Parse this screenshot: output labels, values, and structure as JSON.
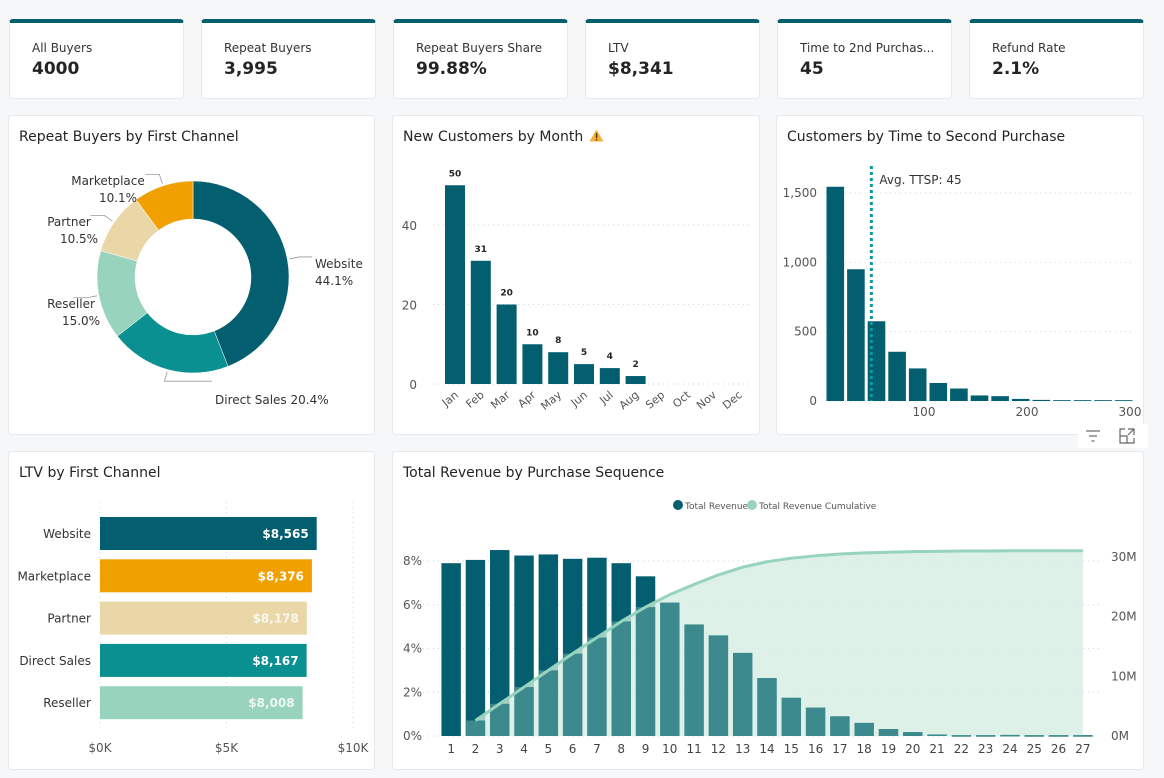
{
  "colors": {
    "primary": "#035e70",
    "teal": "#0a9090",
    "orange": "#f0a000",
    "beige": "#e9d7a8",
    "mint": "#97d3bd",
    "cumulative_fill": "#d3ede3",
    "cumulative_line": "#97d3bd",
    "revenue_overlap": "#3d8a8e",
    "avg_line": "#0a9aa0",
    "warning": "#f5b03b"
  },
  "kpis": [
    {
      "label": "All Buyers",
      "value": "4000"
    },
    {
      "label": "Repeat Buyers",
      "value": "3,995"
    },
    {
      "label": "Repeat Buyers Share",
      "value": "99.88%"
    },
    {
      "label": "LTV",
      "value": "$8,341"
    },
    {
      "label": "Time to 2nd Purchas...",
      "value": "45"
    },
    {
      "label": "Refund Rate",
      "value": "2.1%"
    }
  ],
  "visual_header_icons": [
    "filter-icon",
    "focus-mode-icon"
  ],
  "chart_data": [
    {
      "id": "repeat-buyers-by-channel",
      "type": "pie",
      "donut": true,
      "title": "Repeat Buyers by First Channel",
      "categories": [
        "Website",
        "Direct Sales",
        "Reseller",
        "Partner",
        "Marketplace"
      ],
      "values": [
        44.1,
        20.4,
        15.0,
        10.5,
        10.1
      ],
      "labels": [
        "44.1%",
        "20.4%",
        "15.0%",
        "10.5%",
        "10.1%"
      ],
      "colors": [
        "#035e70",
        "#0a9090",
        "#97d3bd",
        "#e9d7a8",
        "#f0a000"
      ]
    },
    {
      "id": "new-customers-by-month",
      "type": "bar",
      "title": "New Customers by Month",
      "title_icon": "warning-icon",
      "categories": [
        "Jan",
        "Feb",
        "Mar",
        "Apr",
        "May",
        "Jun",
        "Jul",
        "Aug",
        "Sep",
        "Oct",
        "Nov",
        "Dec"
      ],
      "values": [
        50,
        31,
        20,
        10,
        8,
        5,
        4,
        2,
        null,
        null,
        null,
        null
      ],
      "data_labels": [
        "50",
        "31",
        "20",
        "10",
        "8",
        "5",
        "4",
        "2",
        "",
        "",
        "",
        ""
      ],
      "yticks": [
        0,
        20,
        40
      ],
      "ytick_labels": [
        "0",
        "20",
        "40"
      ],
      "ylim": [
        0,
        55
      ],
      "grid": true
    },
    {
      "id": "customers-by-ttsp",
      "type": "bar",
      "title": "Customers by Time to Second Purchase",
      "bin_width": 20,
      "x": [
        10,
        30,
        50,
        70,
        90,
        110,
        130,
        150,
        170,
        190,
        210,
        230,
        250,
        270,
        290
      ],
      "values": [
        1545,
        950,
        575,
        355,
        235,
        130,
        90,
        40,
        35,
        15,
        8,
        6,
        6,
        6,
        6
      ],
      "xlim": [
        0,
        300
      ],
      "xticks": [
        100,
        200,
        300
      ],
      "xtick_labels": [
        "100",
        "200",
        "300"
      ],
      "yticks": [
        0,
        500,
        1000,
        1500
      ],
      "ytick_labels": [
        "0",
        "500",
        "1,000",
        "1,500"
      ],
      "ylim": [
        0,
        1700
      ],
      "reference_line": {
        "x": 45,
        "label": "Avg. TTSP: 45"
      },
      "grid": true
    },
    {
      "id": "ltv-by-channel",
      "type": "bar",
      "orientation": "horizontal",
      "title": "LTV by First Channel",
      "categories": [
        "Website",
        "Marketplace",
        "Partner",
        "Direct Sales",
        "Reseller"
      ],
      "values": [
        8565,
        8376,
        8178,
        8167,
        8008
      ],
      "data_labels": [
        "$8,565",
        "$8,376",
        "$8,178",
        "$8,167",
        "$8,008"
      ],
      "colors": [
        "#035e70",
        "#f0a000",
        "#e9d7a8",
        "#0a9090",
        "#97d3bd"
      ],
      "xticks": [
        0,
        5000,
        10000
      ],
      "xtick_labels": [
        "$0K",
        "$5K",
        "$10K"
      ],
      "xlim": [
        0,
        10000
      ],
      "grid": true
    },
    {
      "id": "revenue-by-purchase-sequence",
      "type": "bar",
      "combo": "bar + area",
      "title": "Total Revenue by Purchase Sequence",
      "legend": [
        "Total Revenue",
        "Total Revenue Cumulative"
      ],
      "legend_position": "top-center",
      "categories": [
        "1",
        "2",
        "3",
        "4",
        "5",
        "6",
        "7",
        "8",
        "9",
        "10",
        "11",
        "12",
        "13",
        "14",
        "15",
        "16",
        "17",
        "18",
        "19",
        "20",
        "21",
        "22",
        "23",
        "24",
        "25",
        "26",
        "27"
      ],
      "series": [
        {
          "name": "Total Revenue",
          "axis": "left",
          "unit": "%",
          "values": [
            7.9,
            8.05,
            8.5,
            8.25,
            8.3,
            8.1,
            8.15,
            7.9,
            7.3,
            6.1,
            5.1,
            4.6,
            3.8,
            2.65,
            1.75,
            1.3,
            0.9,
            0.6,
            0.32,
            0.18,
            0.07,
            0.04,
            0.04,
            0.05,
            0.04,
            0.04,
            0.04
          ]
        },
        {
          "name": "Total Revenue Cumulative",
          "axis": "right",
          "unit": "M",
          "values": [
            null,
            2.6,
            5.4,
            8.2,
            11.0,
            13.8,
            16.5,
            19.2,
            21.6,
            23.7,
            25.4,
            27.0,
            28.3,
            29.2,
            29.8,
            30.2,
            30.5,
            30.7,
            30.8,
            30.9,
            30.95,
            31.0,
            31.0,
            31.05,
            31.05,
            31.05,
            31.05
          ]
        }
      ],
      "yticks_left": [
        0,
        2,
        4,
        6,
        8
      ],
      "ytick_labels_left": [
        "0%",
        "2%",
        "4%",
        "6%",
        "8%"
      ],
      "ylim_left": [
        0,
        9
      ],
      "yticks_right": [
        0,
        10,
        20,
        30
      ],
      "ytick_labels_right": [
        "0M",
        "10M",
        "20M",
        "30M"
      ],
      "ylim_right": [
        0,
        33.5
      ],
      "grid": true
    }
  ]
}
